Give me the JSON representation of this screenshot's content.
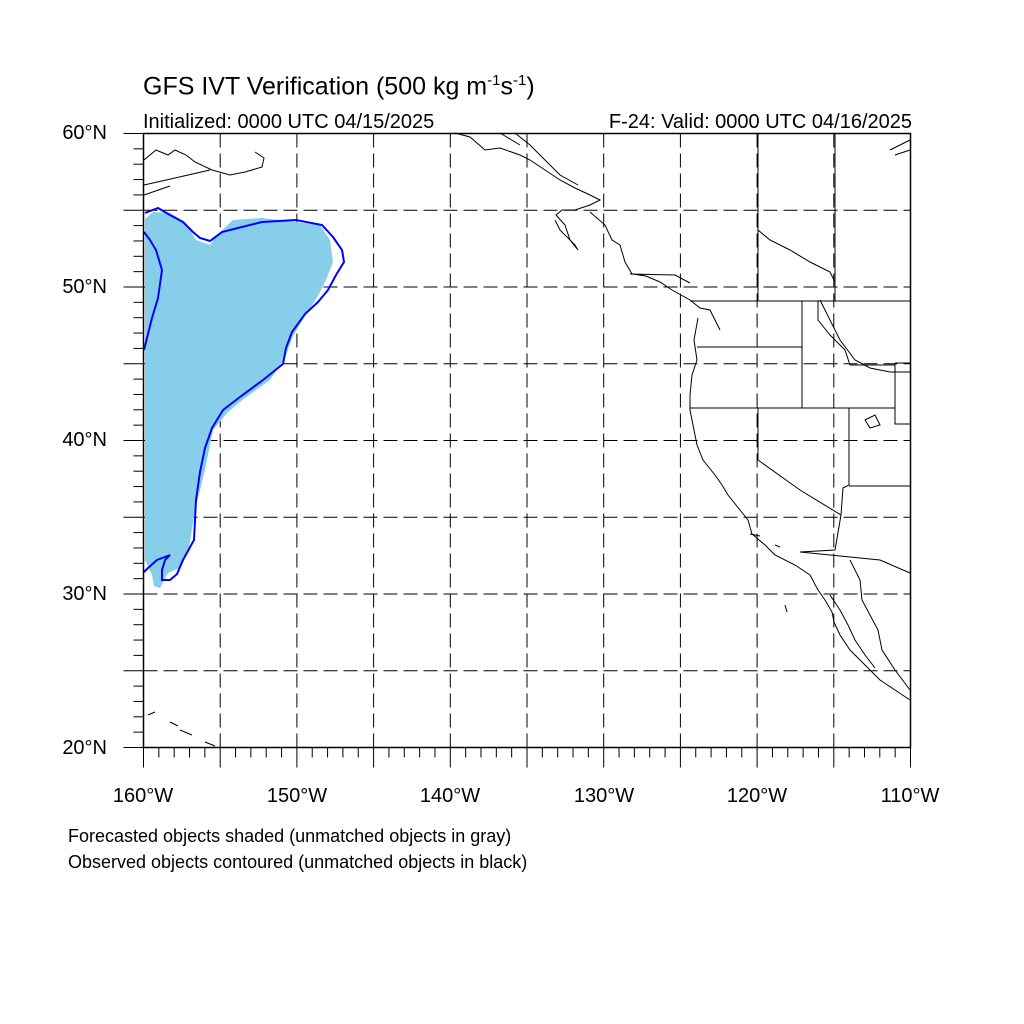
{
  "title": {
    "prefix": "GFS IVT Verification (500 kg m",
    "exp1": "-1",
    "mid": "s",
    "exp2": "-1",
    "suffix": ")"
  },
  "initialized": "Initialized: 0000 UTC 04/15/2025",
  "valid": "F-24: Valid: 0000 UTC 04/16/2025",
  "map": {
    "lon_range": [
      -160,
      -110
    ],
    "lat_range": [
      20,
      60
    ],
    "grid_interval_deg": 5,
    "grid_style": "dashed",
    "lat_labels": [
      "60°N",
      "50°N",
      "40°N",
      "30°N",
      "20°N"
    ],
    "lon_labels": [
      "160°W",
      "150°W",
      "140°W",
      "130°W",
      "120°W",
      "110°W"
    ]
  },
  "colors": {
    "forecast_fill": "#87ceeb",
    "observed_contour": "#0000ff",
    "coastline": "#000000"
  },
  "legend": {
    "line1": "Forecasted objects shaded (unmatched objects in gray)",
    "line2": "Observed objects contoured (unmatched objects in black)"
  }
}
